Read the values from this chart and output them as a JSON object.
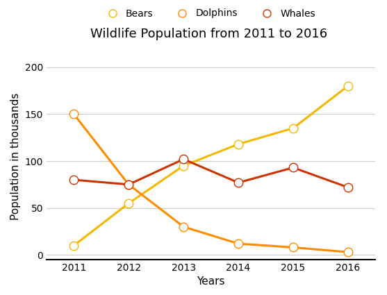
{
  "title": "Wildlife Population from 2011 to 2016",
  "xlabel": "Years",
  "ylabel": "Population in thousands",
  "years": [
    2011,
    2012,
    2013,
    2014,
    2015,
    2016
  ],
  "series": [
    {
      "label": "Bears",
      "values": [
        10,
        55,
        95,
        118,
        135,
        180
      ],
      "color": "#F5B800",
      "marker": "o",
      "markerfacecolor": "white",
      "zorder": 3
    },
    {
      "label": "Dolphins",
      "values": [
        150,
        75,
        30,
        12,
        8,
        3
      ],
      "color": "#FF8C00",
      "marker": "o",
      "markerfacecolor": "white",
      "zorder": 3
    },
    {
      "label": "Whales",
      "values": [
        80,
        75,
        102,
        77,
        93,
        72
      ],
      "color": "#CC3300",
      "marker": "o",
      "markerfacecolor": "white",
      "zorder": 3
    }
  ],
  "ylim": [
    -5,
    215
  ],
  "yticks": [
    0,
    50,
    100,
    150,
    200
  ],
  "xlim": [
    2010.5,
    2016.5
  ],
  "background_color": "#ffffff",
  "grid_color": "#cccccc",
  "title_fontsize": 13,
  "label_fontsize": 11,
  "tick_fontsize": 10,
  "legend_fontsize": 10,
  "linewidth": 2.2,
  "markersize": 9
}
